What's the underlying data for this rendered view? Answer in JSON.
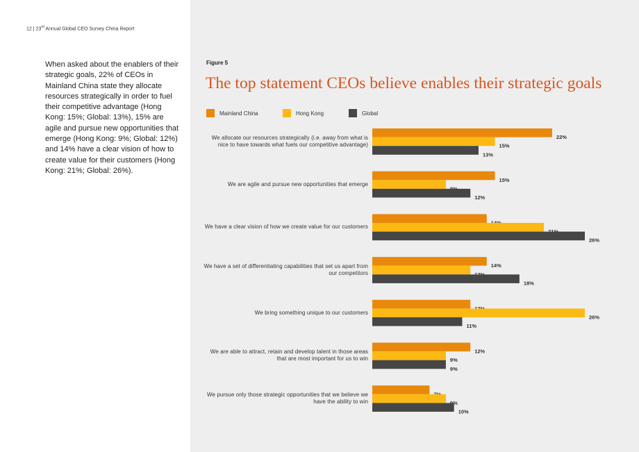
{
  "header": {
    "page_number": "12",
    "separator": "|",
    "ordinal_number": "23",
    "ordinal_suffix": "rd",
    "report_title": "Annual Global CEO Survey China Report"
  },
  "body_text": "When asked about the enablers of their strategic goals, 22% of CEOs in Mainland China state they allocate resources strategically in order to fuel their competitive advantage (Hong Kong: 15%; Global: 13%), 15% are agile and pursue new opportunities that emerge (Hong Kong: 9%; Global: 12%) and 14% have a clear vision of how to create value for their customers (Hong Kong: 21%; Global: 26%).",
  "figure": {
    "label": "Figure 5"
  },
  "colors": {
    "mainland_china": "#e8890c",
    "hong_kong": "#fdb913",
    "global": "#464646",
    "title": "#d9541f",
    "panel": "#eeeeee"
  },
  "chart_data": {
    "type": "bar",
    "orientation": "horizontal",
    "title": "The top statement CEOs believe enables their strategic goals",
    "legend_position": "top-left",
    "value_unit": "%",
    "xlim": [
      0,
      26
    ],
    "categories": [
      "We allocate our resources strategically (i.e. away from what is nice to have towards what fuels our competitive advantage)",
      "We are agile and pursue new opportunities that emerge",
      "We have a clear vision of how we create value for our customers",
      "We have a set of differentiating capabilities that set us apart from our competitors",
      "We bring something unique to our customers",
      "We are able to attract, retain and develop talent in those areas that are most important for us to win",
      "We pursue only those strategic opportunities that we believe we have the ability to win"
    ],
    "series": [
      {
        "name": "Mainland China",
        "color_key": "mainland_china",
        "values": [
          22,
          15,
          14,
          14,
          12,
          12,
          7
        ]
      },
      {
        "name": "Hong Kong",
        "color_key": "hong_kong",
        "values": [
          15,
          9,
          21,
          12,
          26,
          9,
          9
        ]
      },
      {
        "name": "Global",
        "color_key": "global",
        "values": [
          13,
          12,
          26,
          18,
          11,
          9,
          10
        ]
      }
    ]
  }
}
